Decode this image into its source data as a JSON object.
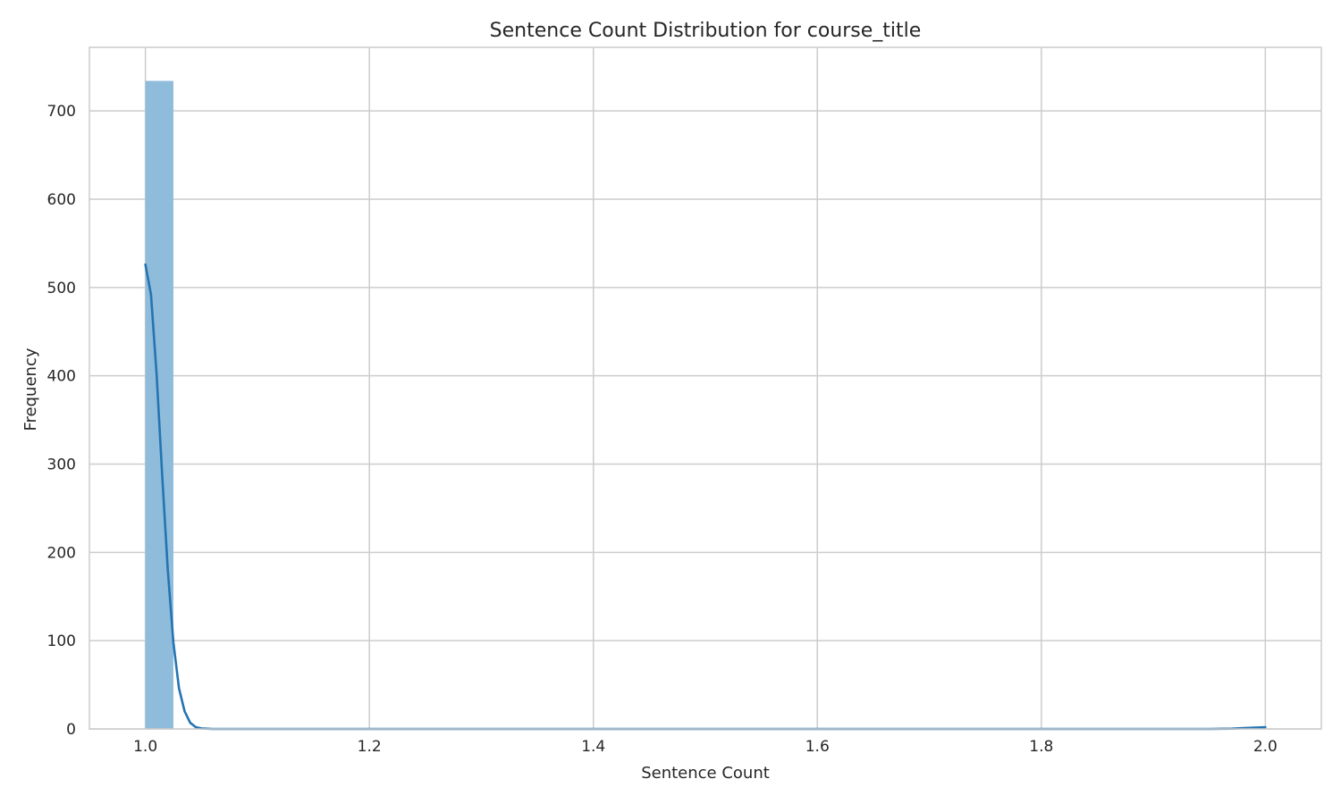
{
  "chart_data": {
    "type": "bar",
    "title": "Sentence Count Distribution for course_title",
    "xlabel": "Sentence Count",
    "ylabel": "Frequency",
    "xlim": [
      0.95,
      2.05
    ],
    "ylim": [
      0,
      772
    ],
    "xticks": [
      1.0,
      1.2,
      1.4,
      1.6,
      1.8,
      2.0
    ],
    "xtick_labels": [
      "1.0",
      "1.2",
      "1.4",
      "1.6",
      "1.8",
      "2.0"
    ],
    "yticks": [
      0,
      100,
      200,
      300,
      400,
      500,
      600,
      700
    ],
    "ytick_labels": [
      "0",
      "100",
      "200",
      "300",
      "400",
      "500",
      "600",
      "700"
    ],
    "grid": true,
    "legend": "none",
    "bar_color": "#8fbcdb",
    "line_color": "#2474b1",
    "bins": [
      {
        "x0": 1.0,
        "x1": 1.025,
        "count": 734
      },
      {
        "x0": 1.975,
        "x1": 2.0,
        "count": 1
      }
    ],
    "kde_points": [
      [
        1.0,
        526
      ],
      [
        1.005,
        492
      ],
      [
        1.01,
        402
      ],
      [
        1.015,
        287
      ],
      [
        1.02,
        180
      ],
      [
        1.025,
        98
      ],
      [
        1.03,
        46
      ],
      [
        1.035,
        20
      ],
      [
        1.04,
        7
      ],
      [
        1.045,
        2
      ],
      [
        1.05,
        0.6
      ],
      [
        1.06,
        0
      ],
      [
        1.1,
        0
      ],
      [
        1.5,
        0
      ],
      [
        1.9,
        0
      ],
      [
        1.95,
        0
      ],
      [
        1.97,
        0.3
      ],
      [
        1.985,
        1.2
      ],
      [
        2.0,
        2
      ]
    ]
  }
}
